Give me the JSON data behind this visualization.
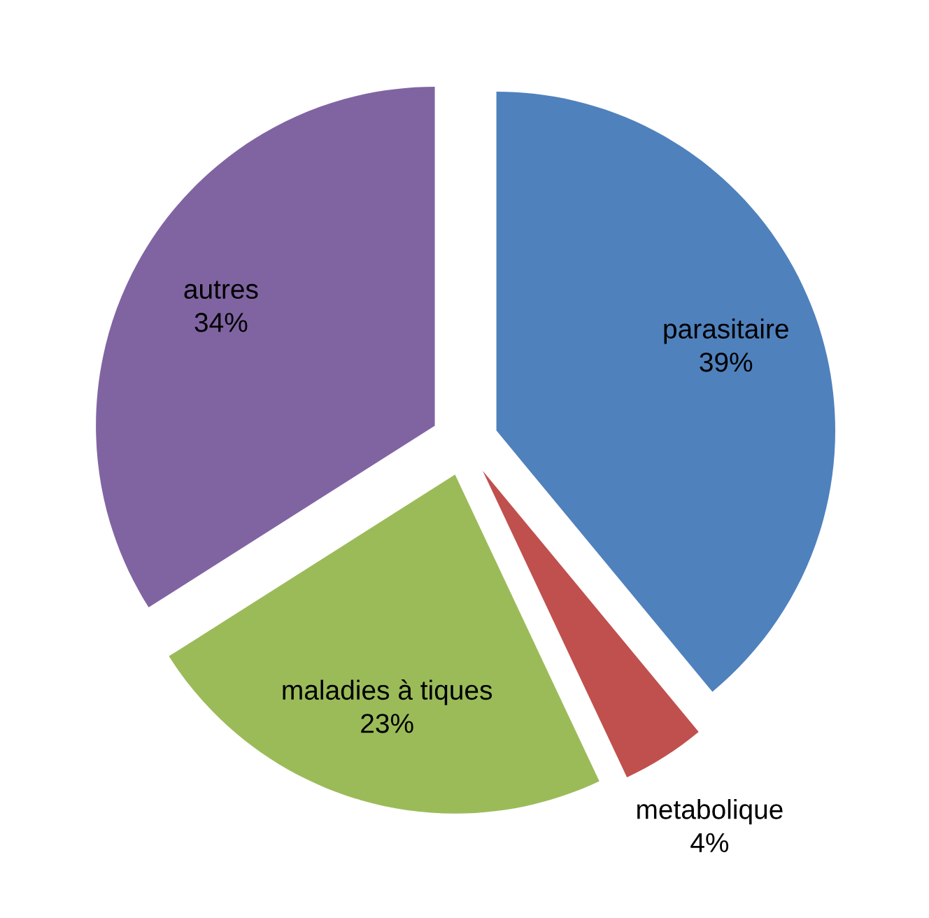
{
  "chart_data": {
    "type": "pie",
    "categories": [
      "parasitaire",
      "metabolique",
      "maladies à tiques",
      "autres"
    ],
    "values": [
      39,
      4,
      23,
      34
    ],
    "colors": [
      "#4f81bd",
      "#c0504d",
      "#9bbb59",
      "#8064a2"
    ],
    "value_labels": [
      "39%",
      "4%",
      "23%",
      "34%"
    ],
    "legend": false
  }
}
